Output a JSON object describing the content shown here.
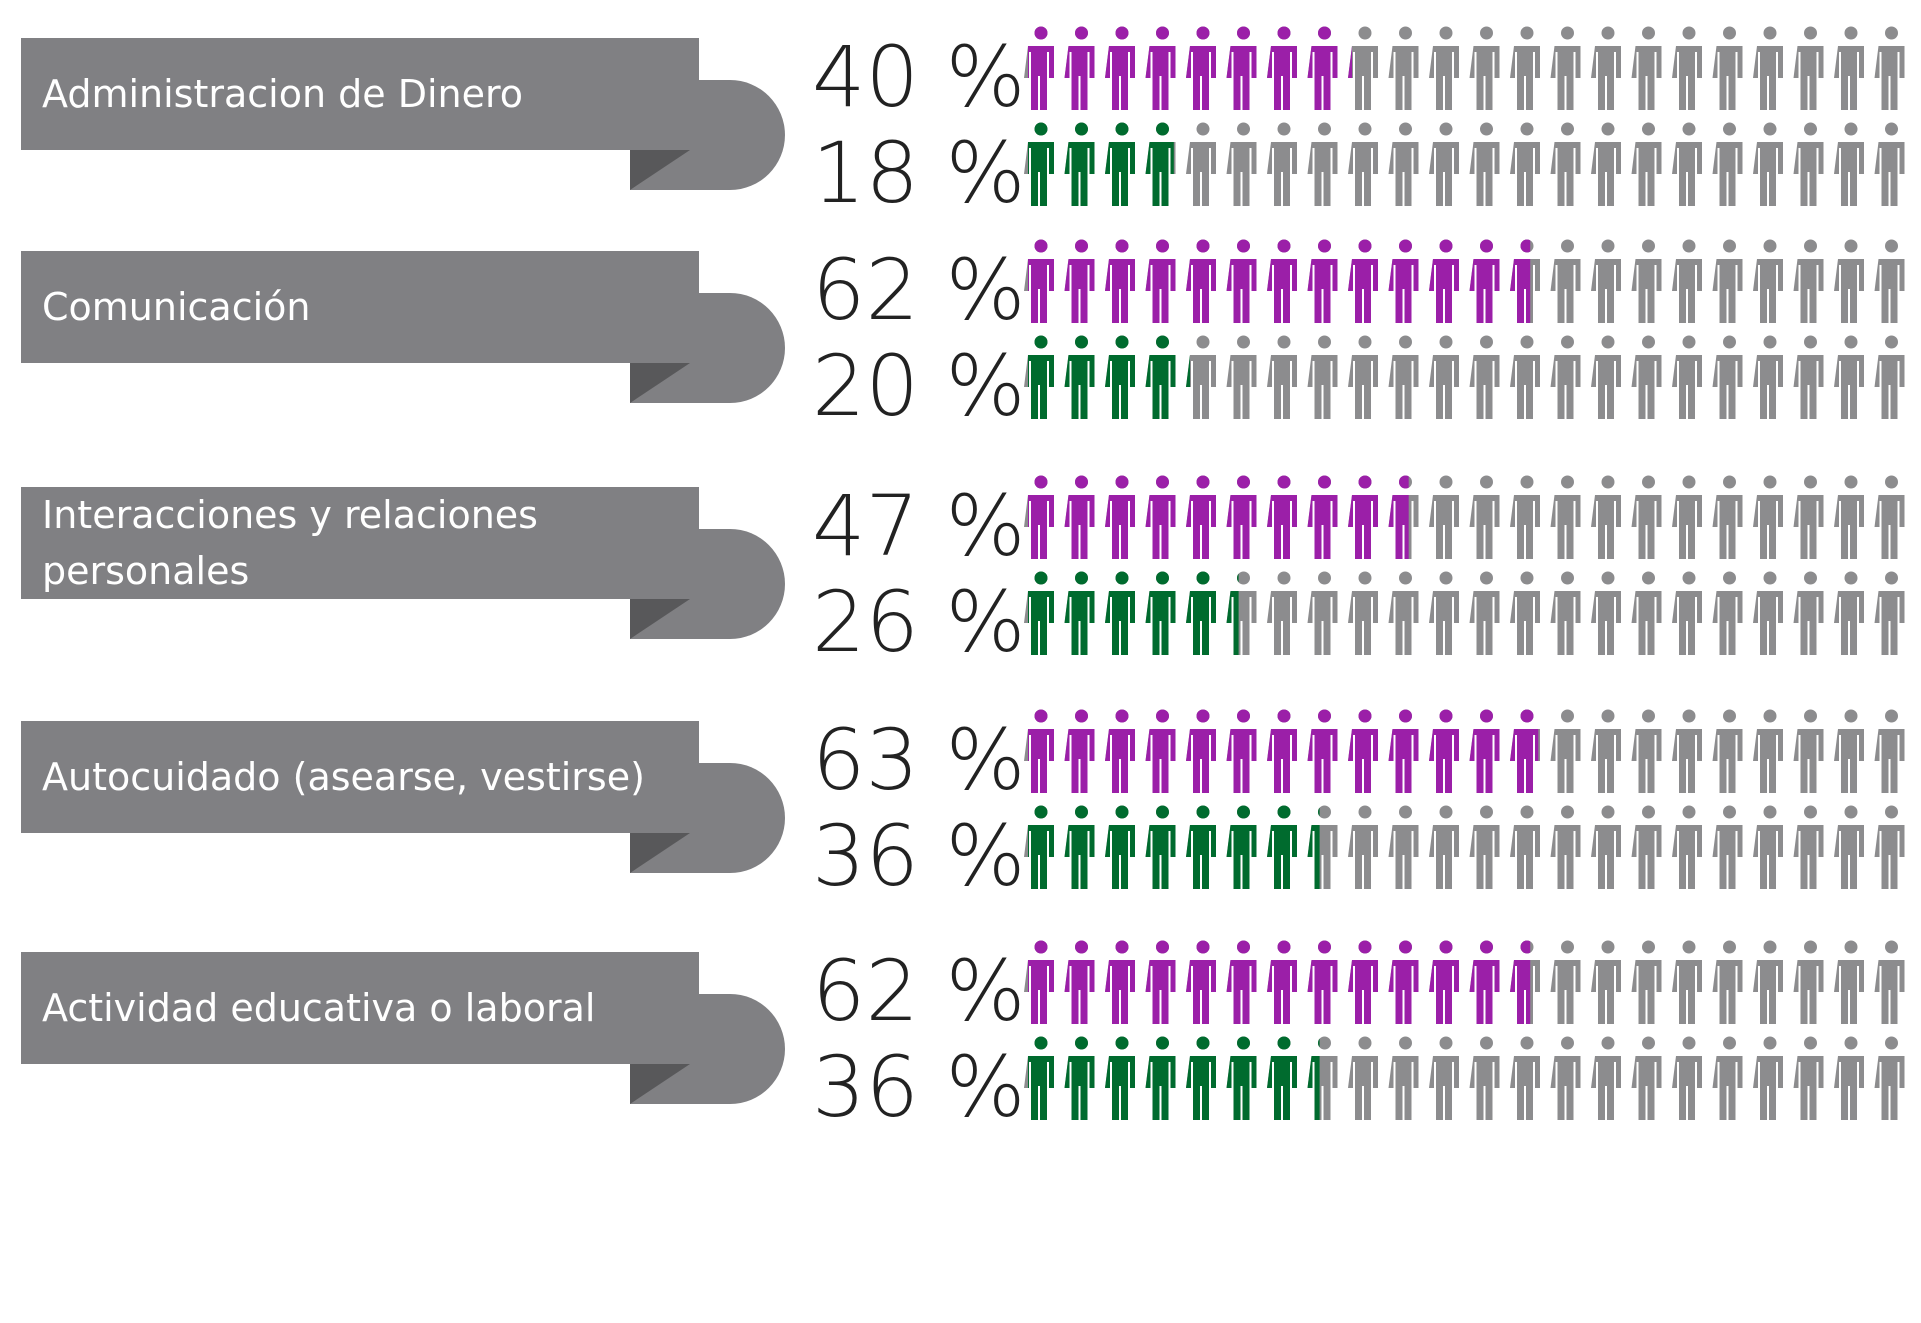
{
  "chart_data": {
    "type": "pictogram",
    "categories": [
      [
        "Administracion de Dinero"
      ],
      [
        "Comunicación"
      ],
      [
        "Interacciones y relaciones",
        "personales"
      ],
      [
        "Autocuidado (asearse, vestirse)"
      ],
      [
        "Actividad educativa o laboral"
      ]
    ],
    "series": [
      {
        "color": "#9b1fa8",
        "values": [
          40,
          62,
          47,
          63,
          62
        ],
        "value_labels": [
          "40 %",
          "62 %",
          "47 %",
          "63 %",
          "62 %"
        ]
      },
      {
        "color": "#006b2e",
        "values": [
          18,
          20,
          26,
          36,
          36
        ],
        "value_labels": [
          "18 %",
          "20 %",
          "26 %",
          "36 %",
          "36 %"
        ]
      }
    ],
    "empty_color": "#8c8c8e"
  }
}
